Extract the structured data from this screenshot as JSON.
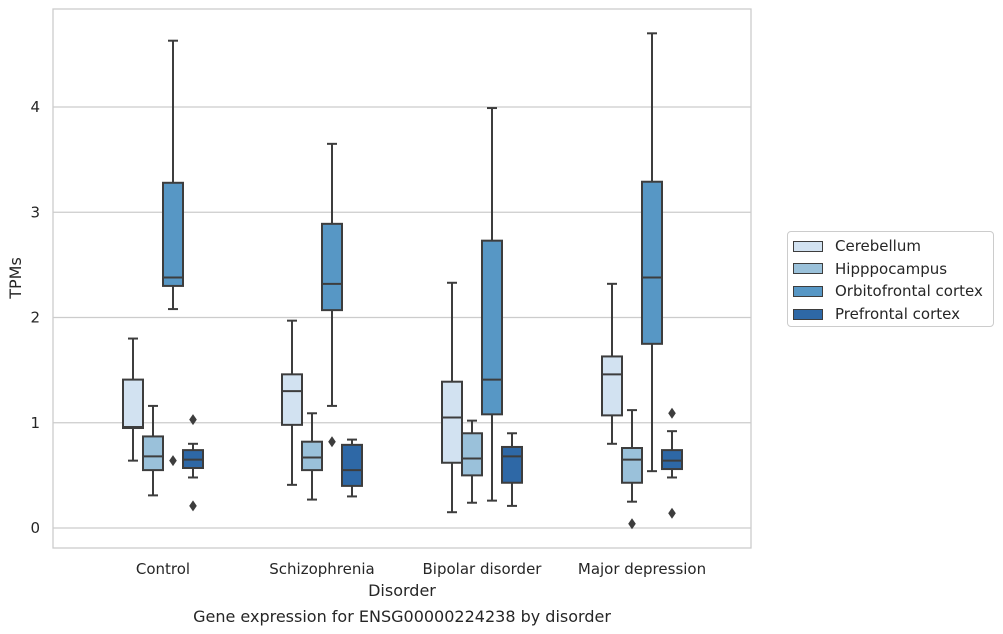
{
  "chart_data": {
    "type": "box",
    "caption": "Gene expression for ENSG00000224238 by disorder",
    "xlabel": "Disorder",
    "ylabel": "TPMs",
    "ylim": [
      -0.18,
      4.95
    ],
    "yticks": [
      0,
      1,
      2,
      3,
      4
    ],
    "grid": true,
    "legend_position": "right",
    "categories": [
      "Control",
      "Schizophrenia",
      "Bipolar disorder",
      "Major depression"
    ],
    "series": [
      {
        "name": "Cerebellum",
        "color": "#d2e2f1",
        "boxes": [
          {
            "whisker_low": 0.64,
            "q1": 0.95,
            "median": 0.96,
            "q3": 1.41,
            "whisker_high": 1.8,
            "outliers": []
          },
          {
            "whisker_low": 0.41,
            "q1": 0.98,
            "median": 1.3,
            "q3": 1.46,
            "whisker_high": 1.97,
            "outliers": []
          },
          {
            "whisker_low": 0.15,
            "q1": 0.62,
            "median": 1.05,
            "q3": 1.39,
            "whisker_high": 2.33,
            "outliers": []
          },
          {
            "whisker_low": 0.8,
            "q1": 1.07,
            "median": 1.46,
            "q3": 1.63,
            "whisker_high": 2.32,
            "outliers": []
          }
        ]
      },
      {
        "name": "Hipppocampus",
        "color": "#9ac1da",
        "boxes": [
          {
            "whisker_low": 0.31,
            "q1": 0.55,
            "median": 0.68,
            "q3": 0.87,
            "whisker_high": 1.16,
            "outliers": []
          },
          {
            "whisker_low": 0.27,
            "q1": 0.55,
            "median": 0.67,
            "q3": 0.82,
            "whisker_high": 1.09,
            "outliers": []
          },
          {
            "whisker_low": 0.24,
            "q1": 0.5,
            "median": 0.66,
            "q3": 0.9,
            "whisker_high": 1.02,
            "outliers": []
          },
          {
            "whisker_low": 0.25,
            "q1": 0.43,
            "median": 0.65,
            "q3": 0.76,
            "whisker_high": 1.12,
            "outliers": [
              0.04
            ]
          }
        ]
      },
      {
        "name": "Orbitofrontal cortex",
        "color": "#5797c5",
        "boxes": [
          {
            "whisker_low": 2.08,
            "q1": 2.3,
            "median": 2.38,
            "q3": 3.28,
            "whisker_high": 4.63,
            "outliers": [
              0.64
            ]
          },
          {
            "whisker_low": 1.16,
            "q1": 2.07,
            "median": 2.32,
            "q3": 2.89,
            "whisker_high": 3.65,
            "outliers": [
              0.82
            ]
          },
          {
            "whisker_low": 0.26,
            "q1": 1.08,
            "median": 1.41,
            "q3": 2.73,
            "whisker_high": 3.99,
            "outliers": []
          },
          {
            "whisker_low": 0.54,
            "q1": 1.75,
            "median": 2.38,
            "q3": 3.29,
            "whisker_high": 4.7,
            "outliers": []
          }
        ]
      },
      {
        "name": "Prefrontal cortex",
        "color": "#2e68a6",
        "boxes": [
          {
            "whisker_low": 0.48,
            "q1": 0.57,
            "median": 0.65,
            "q3": 0.74,
            "whisker_high": 0.8,
            "outliers": [
              1.03,
              0.21
            ]
          },
          {
            "whisker_low": 0.3,
            "q1": 0.4,
            "median": 0.55,
            "q3": 0.79,
            "whisker_high": 0.84,
            "outliers": []
          },
          {
            "whisker_low": 0.21,
            "q1": 0.43,
            "median": 0.68,
            "q3": 0.77,
            "whisker_high": 0.9,
            "outliers": []
          },
          {
            "whisker_low": 0.48,
            "q1": 0.56,
            "median": 0.64,
            "q3": 0.74,
            "whisker_high": 0.92,
            "outliers": [
              1.09,
              0.14
            ]
          }
        ]
      }
    ]
  }
}
